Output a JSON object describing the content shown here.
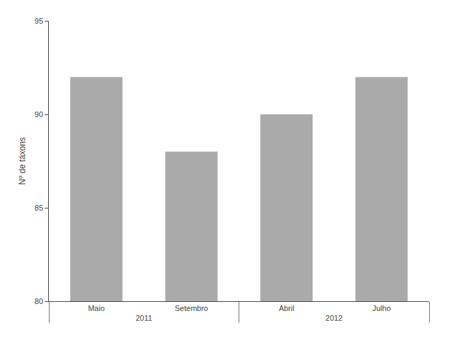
{
  "chart_data": {
    "type": "bar",
    "categories": [
      "Maio",
      "Setembro",
      "Abril",
      "Julho"
    ],
    "groups": [
      "2011",
      "2011",
      "2012",
      "2012"
    ],
    "values": [
      92,
      88,
      90,
      92
    ],
    "color": "#aaaaaa",
    "ylabel": "Nº de táxons",
    "ylim": [
      80,
      95
    ],
    "yticks": [
      80,
      85,
      90,
      95
    ],
    "grid": false
  }
}
